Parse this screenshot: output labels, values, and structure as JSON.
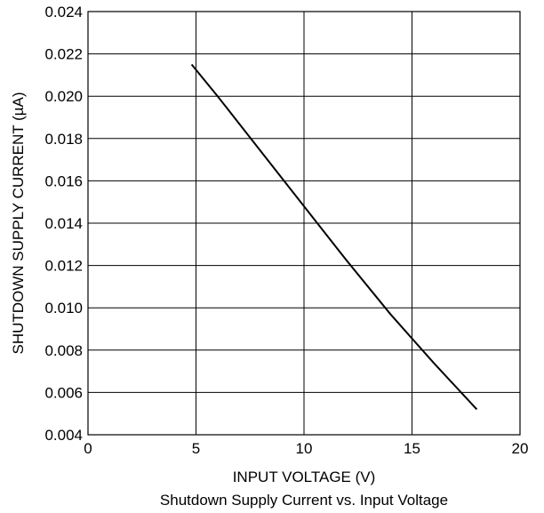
{
  "chart_data": {
    "type": "line",
    "title": "Shutdown Supply Current vs. Input Voltage",
    "xlabel": "INPUT VOLTAGE (V)",
    "ylabel": "SHUTDOWN SUPPLY CURRENT (µA)",
    "xlim": [
      0,
      20
    ],
    "ylim": [
      0.004,
      0.024
    ],
    "x_ticks": [
      0,
      5,
      10,
      15,
      20
    ],
    "x_tick_labels": [
      "0",
      "5",
      "10",
      "15",
      "20"
    ],
    "y_ticks": [
      0.004,
      0.006,
      0.008,
      0.01,
      0.012,
      0.014,
      0.016,
      0.018,
      0.02,
      0.022,
      0.024
    ],
    "y_tick_labels": [
      "0.004",
      "0.006",
      "0.008",
      "0.010",
      "0.012",
      "0.014",
      "0.016",
      "0.018",
      "0.020",
      "0.022",
      "0.024"
    ],
    "grid": true,
    "series": [
      {
        "color": "#000000",
        "x": [
          4.8,
          6,
          8,
          10,
          12,
          14,
          16,
          18
        ],
        "y": [
          0.0215,
          0.02,
          0.0174,
          0.0148,
          0.0122,
          0.0097,
          0.0074,
          0.0052
        ]
      }
    ]
  }
}
